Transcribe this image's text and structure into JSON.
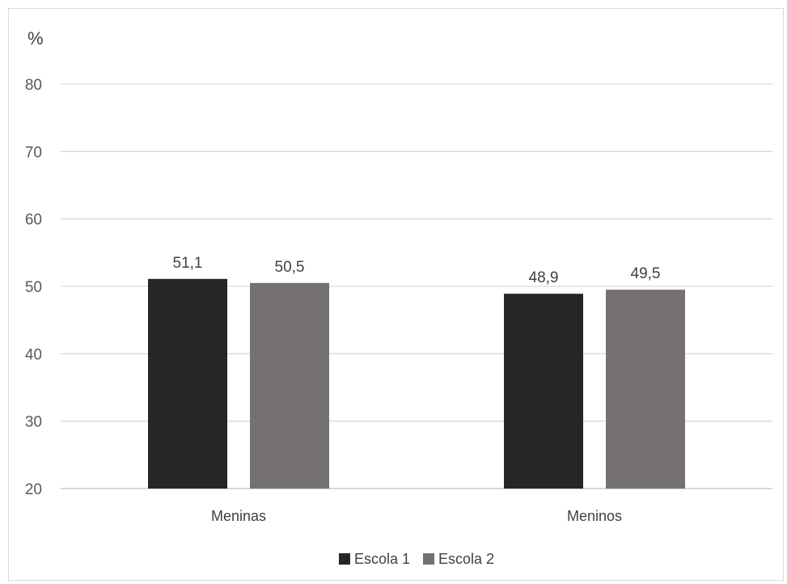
{
  "chart_data": {
    "type": "bar",
    "unit_label": "%",
    "categories": [
      "Meninas",
      "Meninos"
    ],
    "series": [
      {
        "name": "Escola 1",
        "values": [
          51.1,
          48.9
        ],
        "labels": [
          "51,1",
          "48,9"
        ],
        "color": "#262626"
      },
      {
        "name": "Escola 2",
        "values": [
          50.5,
          49.5
        ],
        "labels": [
          "50,5",
          "49,5"
        ],
        "color": "#767171"
      }
    ],
    "ylim": [
      20,
      80
    ],
    "yticks": [
      20,
      30,
      40,
      50,
      60,
      70,
      80
    ],
    "grid": true,
    "legend": "bottom-center"
  }
}
